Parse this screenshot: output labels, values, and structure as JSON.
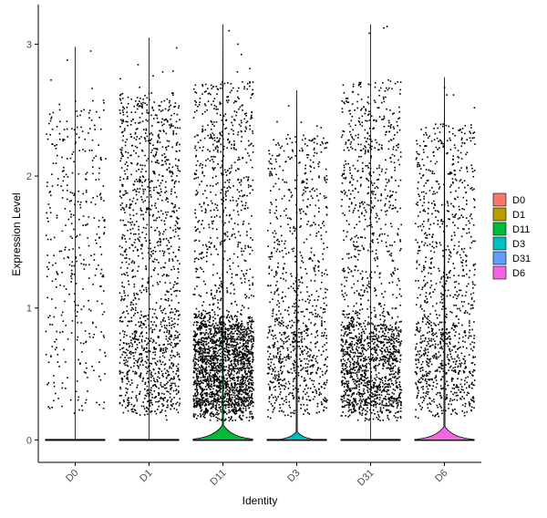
{
  "chart_data": {
    "type": "violin",
    "xlabel": "Identity",
    "ylabel": "Expression Level",
    "ylim": [
      -0.17,
      3.3
    ],
    "yticks": [
      0,
      1,
      2,
      3
    ],
    "grid": false,
    "legend_position": "right",
    "categories": [
      "D0",
      "D1",
      "D11",
      "D3",
      "D31",
      "D6"
    ],
    "series": [
      {
        "name": "D0",
        "color": "#F8766D",
        "max": 2.98,
        "zero_bulge": 0.0,
        "points": 380,
        "dense_low": 0.0
      },
      {
        "name": "D1",
        "color": "#B79F00",
        "max": 3.05,
        "zero_bulge": 0.0,
        "points": 1400,
        "dense_low": 0.2
      },
      {
        "name": "D11",
        "color": "#00BA38",
        "max": 3.15,
        "zero_bulge": 1.0,
        "points": 2600,
        "dense_low": 0.65
      },
      {
        "name": "D3",
        "color": "#00BFC4",
        "max": 2.65,
        "zero_bulge": 0.5,
        "points": 950,
        "dense_low": 0.3
      },
      {
        "name": "D31",
        "color": "#619CFF",
        "max": 3.15,
        "zero_bulge": 0.0,
        "points": 1800,
        "dense_low": 0.55
      },
      {
        "name": "D6",
        "color": "#F564E3",
        "max": 2.75,
        "zero_bulge": 0.9,
        "points": 1100,
        "dense_low": 0.3
      }
    ]
  }
}
